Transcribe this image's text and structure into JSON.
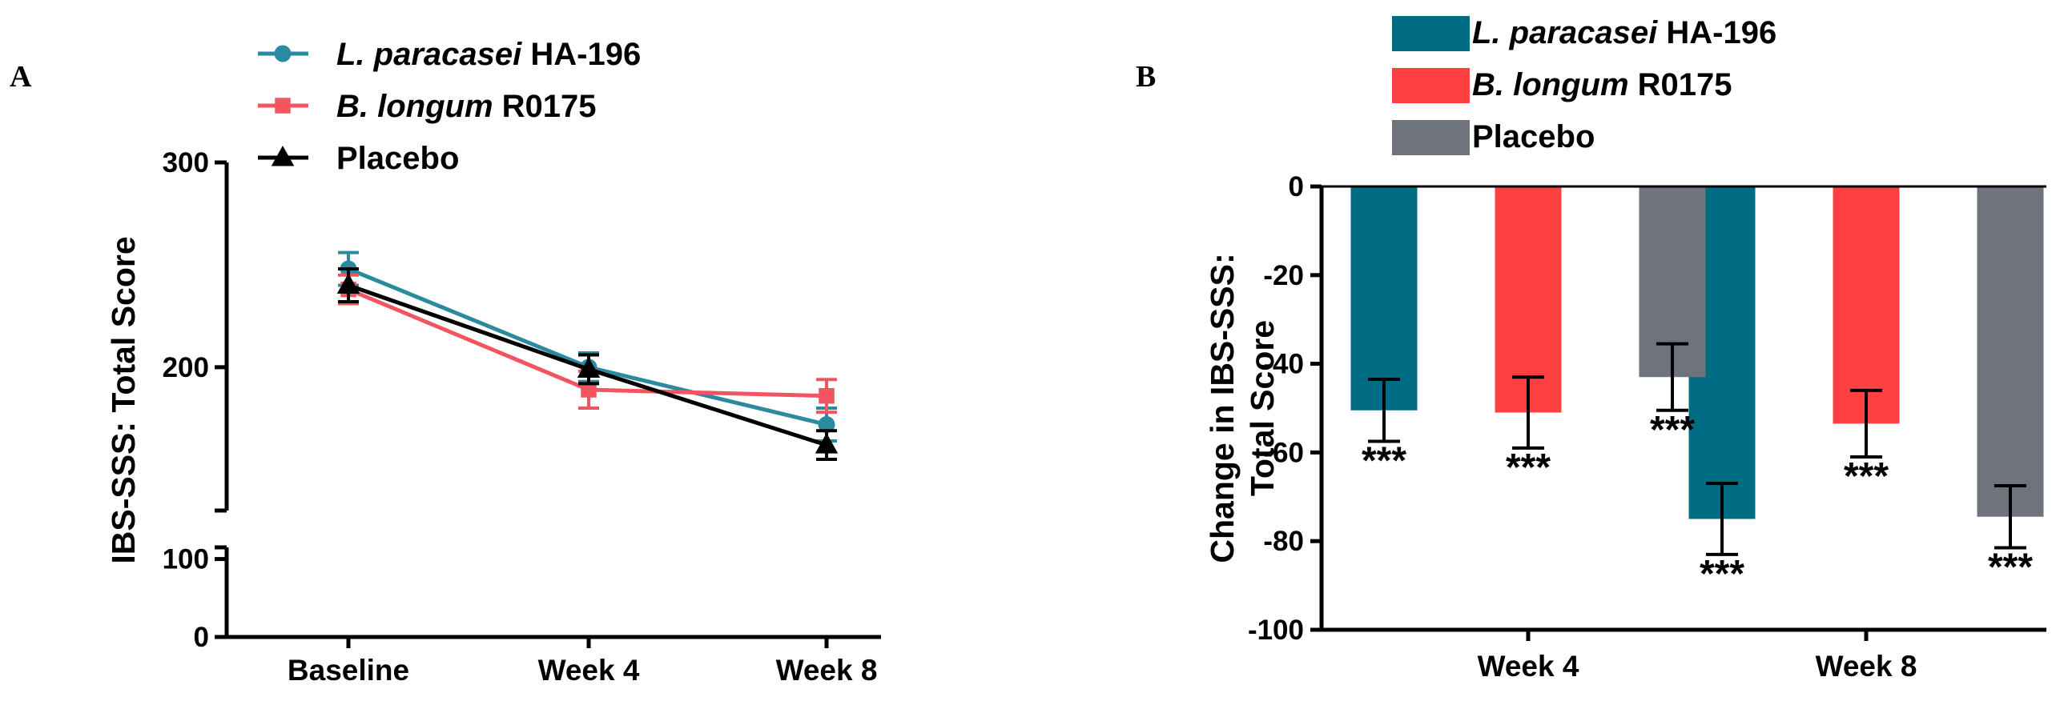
{
  "chart_data": [
    {
      "panel": "A",
      "type": "line",
      "categories": [
        "Baseline",
        "Week 4",
        "Week 8"
      ],
      "ylabel": "IBS-SSS: Total Score",
      "ylim": [
        0,
        300
      ],
      "yticks": [
        {
          "v": 0,
          "label": "0"
        },
        {
          "v": 100,
          "label": "100"
        },
        {
          "v": 200,
          "label": "200"
        },
        {
          "v": 300,
          "label": "300"
        }
      ],
      "axis_break": [
        115,
        130
      ],
      "series": [
        {
          "name_italic": "L. paracasei",
          "name_rest": "HA-196",
          "color": "#2a8aa0",
          "marker": "circle",
          "values": [
            248,
            200,
            172
          ],
          "errors": [
            8,
            7,
            8
          ]
        },
        {
          "name_italic": "B. longum",
          "name_rest": "R0175",
          "color": "#f1555f",
          "marker": "square",
          "values": [
            238,
            189,
            186
          ],
          "errors": [
            7,
            9,
            8
          ]
        },
        {
          "name_italic": "",
          "name_rest": "Placebo",
          "color": "#000000",
          "marker": "triangle",
          "values": [
            240,
            199,
            162
          ],
          "errors": [
            8,
            7,
            7
          ]
        }
      ]
    },
    {
      "panel": "B",
      "type": "bar",
      "categories": [
        "Week 4",
        "Week 8"
      ],
      "ylabel_line1": "Change in IBS-SSS:",
      "ylabel_line2": "Total Score",
      "ylim": [
        -100,
        0
      ],
      "yticks": [
        0,
        -20,
        -40,
        -60,
        -80,
        -100
      ],
      "series": [
        {
          "name_italic": "L. paracasei",
          "name_rest": "HA-196",
          "color": "#006c84",
          "values": [
            -50.5,
            -75
          ],
          "errors": [
            7,
            8
          ],
          "significance": [
            "***",
            "***"
          ]
        },
        {
          "name_italic": "B. longum",
          "name_rest": "R0175",
          "color": "#ff4040",
          "values": [
            -51,
            -53.5
          ],
          "errors": [
            8,
            7.5
          ],
          "significance": [
            "***",
            "***"
          ]
        },
        {
          "name_italic": "",
          "name_rest": "Placebo",
          "color": "#6e737c",
          "values": [
            -43,
            -74.5
          ],
          "errors": [
            7.5,
            7
          ],
          "significance": [
            "***",
            "***"
          ]
        }
      ]
    }
  ]
}
